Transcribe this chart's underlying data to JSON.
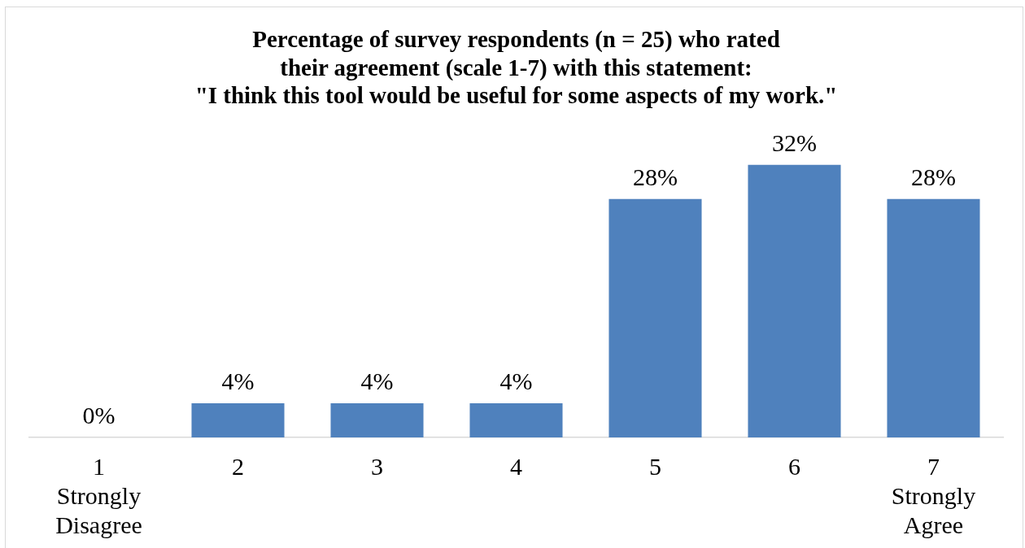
{
  "chart_data": {
    "type": "bar",
    "title": "Percentage of survey respondents (n = 25) who rated\ntheir agreement (scale 1-7) with this statement:\n\"I think this tool would be useful for some aspects of my work.\"",
    "categories": [
      "1\nStrongly\nDisagree",
      "2",
      "3",
      "4",
      "5",
      "6",
      "7\nStrongly\nAgree"
    ],
    "values": [
      0,
      4,
      4,
      4,
      28,
      32,
      28
    ],
    "value_labels": [
      "0%",
      "4%",
      "4%",
      "4%",
      "28%",
      "32%",
      "28%"
    ],
    "color": "#4f81bd",
    "grid": false,
    "legend": false,
    "tick_labels": "x"
  }
}
